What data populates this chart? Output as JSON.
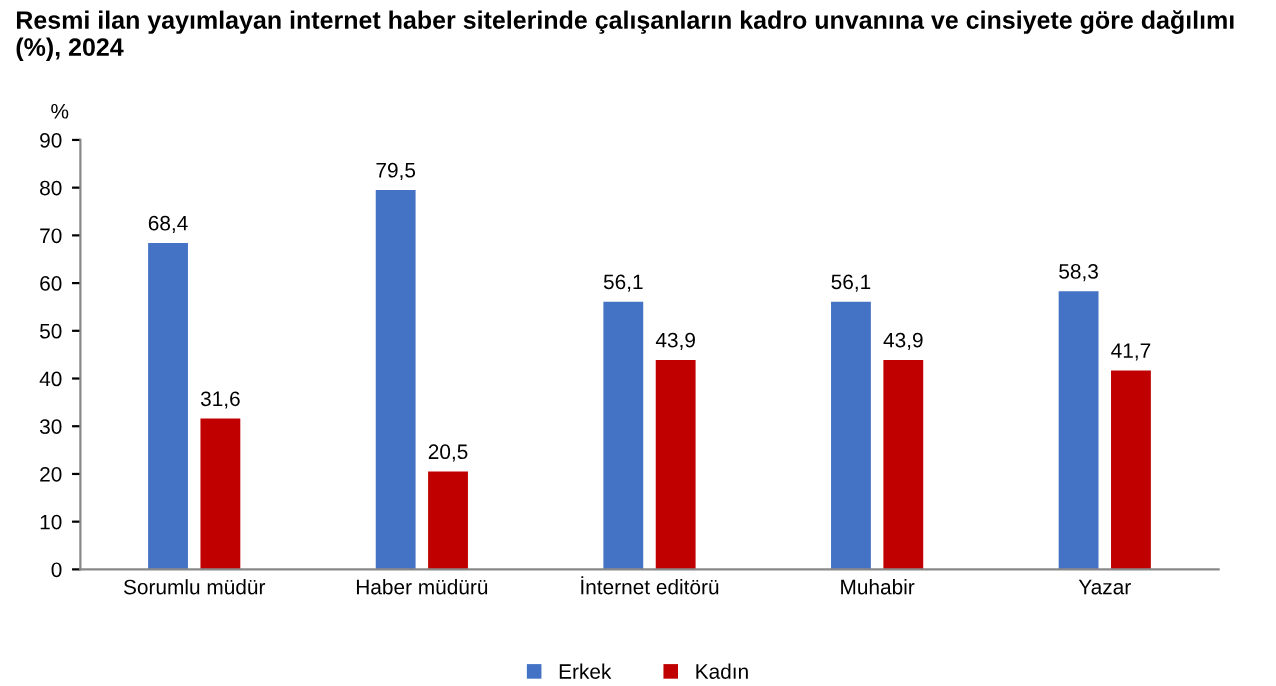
{
  "chart_data": {
    "type": "bar",
    "title": "Resmi ilan yayımlayan internet haber sitelerinde çalışanların kadro unvanına ve cinsiyete göre dağılımı (%), 2024",
    "ylabel": "%",
    "categories": [
      "Sorumlu müdür",
      "Haber müdürü",
      "İnternet editörü",
      "Muhabir",
      "Yazar"
    ],
    "series": [
      {
        "name": "Erkek",
        "color": "#4472c4",
        "values": [
          68.4,
          79.5,
          56.1,
          56.1,
          58.3
        ],
        "value_labels": [
          "68,4",
          "79,5",
          "56,1",
          "56,1",
          "58,3"
        ]
      },
      {
        "name": "Kadın",
        "color": "#c00000",
        "values": [
          31.6,
          20.5,
          43.9,
          43.9,
          41.7
        ],
        "value_labels": [
          "31,6",
          "20,5",
          "43,9",
          "43,9",
          "41,7"
        ]
      }
    ],
    "ylim": [
      0,
      90
    ],
    "yticks": [
      0,
      10,
      20,
      30,
      40,
      50,
      60,
      70,
      80,
      90
    ],
    "grid": false,
    "legend": "bottom"
  }
}
